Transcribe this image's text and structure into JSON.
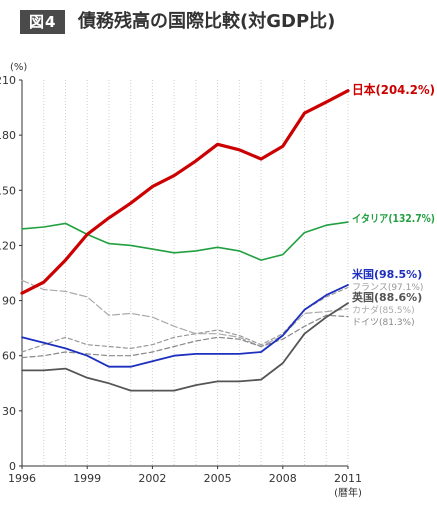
{
  "header": {
    "figure_label": "図4",
    "title": "債務残高の国際比較(対GDP比)"
  },
  "chart_data": {
    "type": "line",
    "title": "債務残高の国際比較(対GDP比)",
    "y_unit": "(%)",
    "x_unit": "(暦年)",
    "x": [
      1996,
      1997,
      1998,
      1999,
      2000,
      2001,
      2002,
      2003,
      2004,
      2005,
      2006,
      2007,
      2008,
      2009,
      2010,
      2011
    ],
    "x_ticks": [
      1996,
      1999,
      2002,
      2005,
      2008,
      2011
    ],
    "ylim": [
      0,
      210
    ],
    "y_ticks": [
      0,
      30,
      60,
      90,
      120,
      150,
      180,
      210
    ],
    "grid": "vertical-dotted",
    "series": [
      {
        "name": "日本",
        "label": "日本(204.2%)",
        "color": "#cc0000",
        "width": 3.2,
        "dash": "",
        "values": [
          94,
          100,
          112,
          126,
          135,
          143,
          152,
          158,
          166,
          175,
          172,
          167,
          174,
          192,
          198,
          204.2
        ]
      },
      {
        "name": "イタリア",
        "label": "イタリア(132.7%)",
        "color": "#22a040",
        "width": 1.6,
        "dash": "",
        "values": [
          129,
          130,
          132,
          126,
          121,
          120,
          118,
          116,
          117,
          119,
          117,
          112,
          115,
          127,
          131,
          132.7
        ]
      },
      {
        "name": "米国",
        "label": "米国(98.5%)",
        "color": "#1c2fbf",
        "width": 1.8,
        "dash": "",
        "values": [
          70,
          67,
          64,
          60,
          54,
          54,
          57,
          60,
          61,
          61,
          61,
          62,
          71,
          85,
          93,
          98.5
        ]
      },
      {
        "name": "フランス",
        "label": "フランス(97.1%)",
        "color": "#999999",
        "width": 1.2,
        "dash": "4,3",
        "values": [
          62,
          66,
          70,
          66,
          65,
          64,
          66,
          70,
          72,
          74,
          71,
          66,
          72,
          85,
          92,
          97.1
        ]
      },
      {
        "name": "英国",
        "label": "英国(88.6%)",
        "color": "#555555",
        "width": 1.8,
        "dash": "",
        "values": [
          52,
          52,
          53,
          48,
          45,
          41,
          41,
          41,
          44,
          46,
          46,
          47,
          56,
          72,
          81,
          88.6
        ]
      },
      {
        "name": "カナダ",
        "label": "カナダ(85.5%)",
        "color": "#aaaaaa",
        "width": 1.2,
        "dash": "7,3",
        "values": [
          101,
          96,
          95,
          92,
          82,
          83,
          81,
          76,
          72,
          72,
          70,
          65,
          71,
          83,
          84,
          85.5
        ]
      },
      {
        "name": "ドイツ",
        "label": "ドイツ(81.3%)",
        "color": "#888888",
        "width": 1.2,
        "dash": "5,3",
        "values": [
          59,
          60,
          62,
          61,
          60,
          60,
          62,
          65,
          68,
          70,
          69,
          65,
          69,
          76,
          82,
          81.3
        ]
      }
    ]
  }
}
